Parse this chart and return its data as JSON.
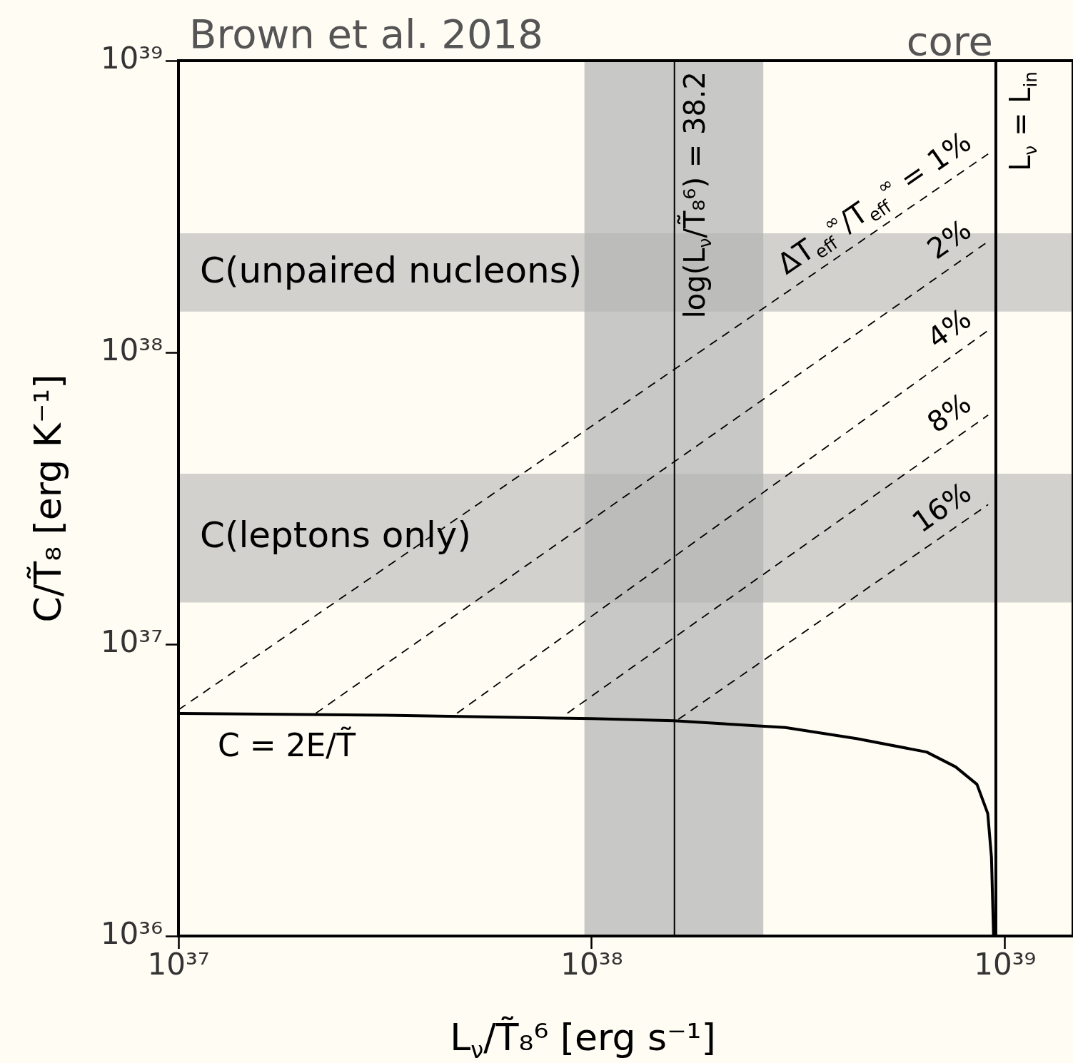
{
  "chart_data": {
    "type": "line",
    "xlabel": "L$_{ν}$/T̃₈⁶ [erg s⁻¹]",
    "ylabel": "C/T̃₈ [erg K⁻¹]",
    "annotations": [
      "Brown et al. 2018",
      "core",
      "log(L$_{ν}$/T̃₈⁶) = 38.2"
    ],
    "xlim": [
      1e+37,
      1.46e+39
    ],
    "ylim": [
      1e+36,
      1e+39
    ],
    "xticks": [
      {
        "value": 1e+37,
        "label": "10³⁷"
      },
      {
        "value": 1e+38,
        "label": "10³⁸"
      },
      {
        "value": 1e+39,
        "label": "10³⁹"
      }
    ],
    "yticks": [
      {
        "value": 1e+36,
        "label": "10³⁶"
      },
      {
        "value": 1e+37,
        "label": "10³⁷"
      },
      {
        "value": 1e+38,
        "label": "10³⁸"
      },
      {
        "value": 1e+39,
        "label": "10³⁹"
      }
    ],
    "log": "xy",
    "grid": false,
    "bands": [
      {
        "axis": "x",
        "from": 9.6e+37,
        "to": 2.6e+38,
        "color": "#c8c8c6"
      },
      {
        "axis": "y",
        "from": 1.38e+38,
        "to": 2.56e+38,
        "label": "C(unpaired nucleons)",
        "color": "#b4b4b4"
      },
      {
        "axis": "y",
        "from": 1.39e+37,
        "to": 3.84e+37,
        "label": "C(leptons only)",
        "color": "#b4b4b4"
      }
    ],
    "ref_lines": [
      {
        "axis": "x",
        "value": 1.585e+38,
        "color": "#000000"
      },
      {
        "axis": "x",
        "value": 9.5e+38,
        "label": "L$_{ν}$ = L$_{in}$",
        "color": "#000000"
      }
    ],
    "series": [
      {
        "name": "C = 2E/T̃",
        "color": "#000000",
        "line_style": "solid",
        "x": [
          1e+37,
          3.16e+37,
          1e+38,
          1.58e+38,
          2.94e+38,
          4.37e+38,
          6.46e+38,
          7.59e+38,
          8.55e+38,
          9.08e+38,
          9.27e+38,
          9.38e+38
        ],
        "values": [
          5.79e+36,
          5.71e+36,
          5.56e+36,
          5.47e+36,
          5.18e+36,
          4.75e+36,
          4.27e+36,
          3.8e+36,
          3.31e+36,
          2.63e+36,
          1.86e+36,
          1e+36
        ]
      },
      {
        "name": "ΔT$_{eff}$$^{∞}$/T$_{eff}$$^{∞}$ = 1%",
        "color": "#000000",
        "line_style": "dashed",
        "x": [
          1e+37,
          9.1e+38
        ],
        "values": [
          5.96e+36,
          4.79e+38
        ]
      },
      {
        "name": "2%",
        "color": "#000000",
        "line_style": "dashed",
        "x": [
          2.15e+37,
          9.1e+38
        ],
        "values": [
          5.8e+36,
          2.4e+38
        ]
      },
      {
        "name": "4%",
        "color": "#000000",
        "line_style": "dashed",
        "x": [
          4.72e+37,
          9.1e+38
        ],
        "values": [
          5.8e+36,
          1.19e+38
        ]
      },
      {
        "name": "8%",
        "color": "#000000",
        "line_style": "dashed",
        "x": [
          8.73e+37,
          9.1e+38
        ],
        "values": [
          5.8e+36,
          6.1e+37
        ]
      },
      {
        "name": "16%",
        "color": "#000000",
        "line_style": "dashed",
        "x": [
          1.62e+38,
          9.1e+38
        ],
        "values": [
          5.53e+36,
          3.01e+37
        ]
      }
    ]
  }
}
